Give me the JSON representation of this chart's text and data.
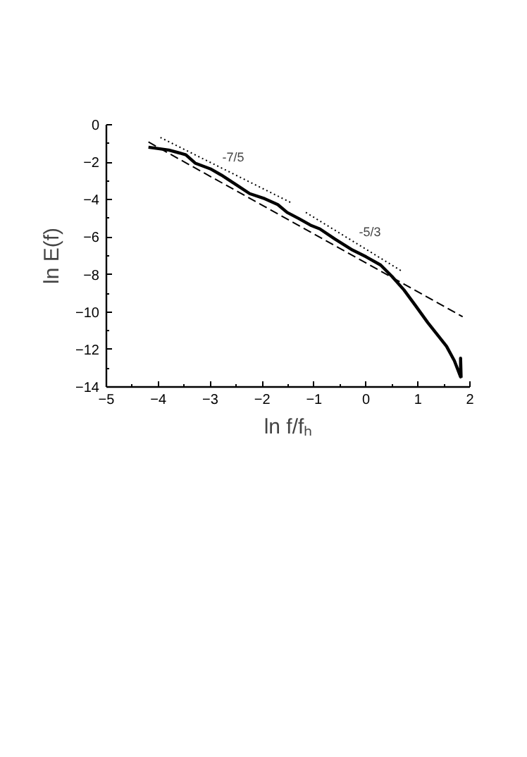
{
  "chart_data": {
    "type": "line",
    "xlabel": "ln f/fₕ",
    "ylabel": "ln E(f)",
    "xlim": [
      -5,
      2
    ],
    "ylim": [
      -14,
      0
    ],
    "xticks": [
      -5,
      -4,
      -3,
      -2,
      -1,
      0,
      1,
      2
    ],
    "yticks": [
      -14,
      -12,
      -10,
      -8,
      -6,
      -4,
      -2,
      0
    ],
    "grid": false,
    "marker": "none",
    "series": [
      {
        "color": "#000000",
        "line_style": "solid",
        "x": [
          -4.19,
          -3.8,
          -3.47,
          -3.29,
          -3.0,
          -2.79,
          -2.5,
          -2.24,
          -1.95,
          -1.7,
          -1.52,
          -1.3,
          -1.07,
          -0.89,
          -0.6,
          -0.26,
          0.0,
          0.28,
          0.5,
          0.73,
          0.95,
          1.19,
          1.4,
          1.55,
          1.7,
          1.82,
          1.82,
          1.83
        ],
        "values": [
          -1.2,
          -1.35,
          -1.6,
          -2.05,
          -2.35,
          -2.68,
          -3.2,
          -3.68,
          -3.95,
          -4.26,
          -4.68,
          -5.0,
          -5.36,
          -5.56,
          -6.1,
          -6.69,
          -7.05,
          -7.49,
          -8.1,
          -8.82,
          -9.65,
          -10.57,
          -11.3,
          -11.83,
          -12.6,
          -13.46,
          -12.46,
          -13.5
        ]
      },
      {
        "color": "#000000",
        "line_style": "dashed",
        "x": [
          -4.19,
          1.86
        ],
        "values": [
          -0.92,
          -10.25
        ]
      },
      {
        "color": "#000000",
        "line_style": "dotted",
        "x": [
          -3.96,
          -1.43
        ],
        "values": [
          -0.68,
          -4.18
        ]
      },
      {
        "color": "#000000",
        "line_style": "dotted",
        "x": [
          -1.16,
          0.69
        ],
        "values": [
          -4.68,
          -7.82
        ]
      }
    ],
    "annotations": [
      "-7/5",
      "-5/3"
    ]
  }
}
